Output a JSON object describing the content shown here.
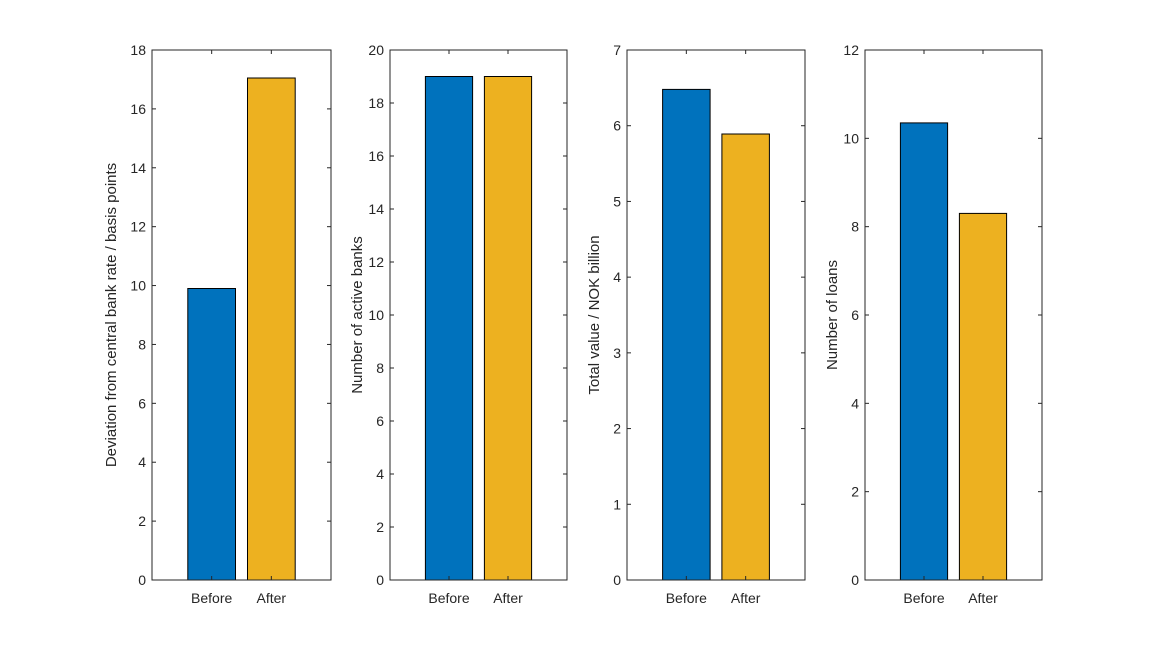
{
  "chart_data": [
    {
      "type": "bar",
      "title": "",
      "xlabel": "",
      "ylabel": "Deviation from central bank rate / basis points",
      "categories": [
        "Before",
        "After"
      ],
      "values": [
        9.9,
        17.05
      ],
      "colors": [
        "#0072BD",
        "#EDB120"
      ],
      "ylim": [
        0,
        18
      ],
      "yticks": [
        0,
        2,
        4,
        6,
        8,
        10,
        12,
        14,
        16,
        18
      ],
      "grid": false
    },
    {
      "type": "bar",
      "title": "",
      "xlabel": "",
      "ylabel": "Number of active banks",
      "categories": [
        "Before",
        "After"
      ],
      "values": [
        19,
        19
      ],
      "colors": [
        "#0072BD",
        "#EDB120"
      ],
      "ylim": [
        0,
        20
      ],
      "yticks": [
        0,
        2,
        4,
        6,
        8,
        10,
        12,
        14,
        16,
        18,
        20
      ],
      "grid": false
    },
    {
      "type": "bar",
      "title": "",
      "xlabel": "",
      "ylabel": "Total value / NOK billion",
      "categories": [
        "Before",
        "After"
      ],
      "values": [
        6.48,
        5.89
      ],
      "colors": [
        "#0072BD",
        "#EDB120"
      ],
      "ylim": [
        0,
        7
      ],
      "yticks": [
        0,
        1,
        2,
        3,
        4,
        5,
        6,
        7
      ],
      "grid": false
    },
    {
      "type": "bar",
      "title": "",
      "xlabel": "",
      "ylabel": "Number of loans",
      "categories": [
        "Before",
        "After"
      ],
      "values": [
        10.35,
        8.3
      ],
      "colors": [
        "#0072BD",
        "#EDB120"
      ],
      "ylim": [
        0,
        12
      ],
      "yticks": [
        0,
        2,
        4,
        6,
        8,
        10,
        12
      ],
      "grid": false
    }
  ]
}
